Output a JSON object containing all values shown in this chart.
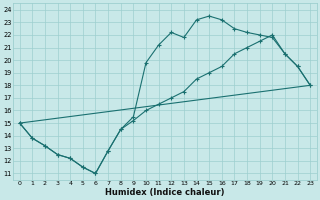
{
  "xlabel": "Humidex (Indice chaleur)",
  "bg_color": "#c8e8e8",
  "grid_color": "#9dcfcf",
  "line_color": "#1a7070",
  "xlim": [
    -0.5,
    23.5
  ],
  "ylim": [
    10.5,
    24.5
  ],
  "xticks": [
    0,
    1,
    2,
    3,
    4,
    5,
    6,
    7,
    8,
    9,
    10,
    11,
    12,
    13,
    14,
    15,
    16,
    17,
    18,
    19,
    20,
    21,
    22,
    23
  ],
  "yticks": [
    11,
    12,
    13,
    14,
    15,
    16,
    17,
    18,
    19,
    20,
    21,
    22,
    23,
    24
  ],
  "line1_x": [
    0,
    1,
    2,
    3,
    4,
    5,
    6,
    7,
    8,
    9,
    10,
    11,
    12,
    13,
    14,
    15,
    16,
    17,
    18,
    19,
    20,
    21,
    22,
    23
  ],
  "line1_y": [
    15.0,
    13.8,
    13.2,
    12.5,
    12.2,
    11.5,
    11.0,
    12.8,
    14.5,
    15.2,
    16.0,
    16.5,
    17.0,
    17.5,
    18.5,
    19.0,
    19.5,
    20.5,
    21.0,
    21.5,
    22.0,
    20.5,
    19.5,
    18.0
  ],
  "line2_x": [
    0,
    1,
    2,
    3,
    4,
    5,
    6,
    7,
    8,
    9,
    10,
    11,
    12,
    13,
    14,
    15,
    16,
    17,
    18,
    19,
    20,
    21,
    22,
    23
  ],
  "line2_y": [
    15.0,
    13.8,
    13.2,
    12.5,
    12.2,
    11.5,
    11.0,
    12.8,
    14.5,
    15.5,
    19.8,
    21.2,
    22.2,
    21.8,
    23.2,
    23.5,
    23.2,
    22.5,
    22.2,
    22.0,
    21.8,
    20.5,
    19.5,
    18.0
  ],
  "line3_x": [
    0,
    23
  ],
  "line3_y": [
    15.0,
    18.0
  ]
}
